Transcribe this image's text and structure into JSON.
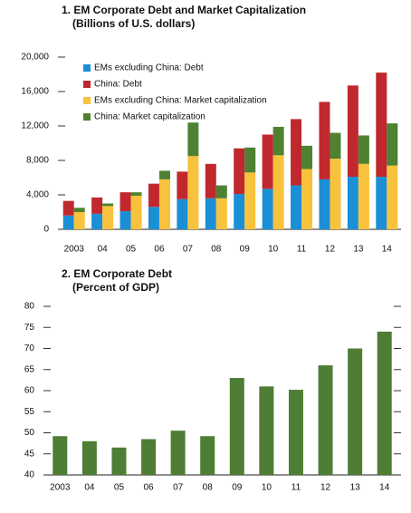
{
  "chart_data": [
    {
      "type": "bar",
      "title": "1. EM Corporate Debt and Market Capitalization",
      "subtitle": "(Billions of U.S. dollars)",
      "categories": [
        "2003",
        "04",
        "05",
        "06",
        "07",
        "08",
        "09",
        "10",
        "11",
        "12",
        "13",
        "14"
      ],
      "series": [
        {
          "name": "EMs excluding China: Debt",
          "color": "#1a8fd6",
          "values": [
            1600,
            1800,
            2100,
            2600,
            3500,
            3600,
            4100,
            4700,
            5100,
            5800,
            6100,
            6100
          ]
        },
        {
          "name": "China: Debt",
          "color": "#c0282d",
          "values": [
            1700,
            1900,
            2200,
            2700,
            3200,
            4000,
            5300,
            6300,
            7700,
            9000,
            10600,
            12100
          ]
        },
        {
          "name": "EMs excluding China: Market capitalization",
          "color": "#f9c23c",
          "values": [
            2000,
            2700,
            3900,
            5800,
            8500,
            3600,
            6600,
            8600,
            7000,
            8200,
            7600,
            7400
          ]
        },
        {
          "name": "China: Market capitalization",
          "color": "#4e8132",
          "values": [
            500,
            300,
            400,
            1000,
            3900,
            1500,
            2900,
            3300,
            2700,
            3000,
            3300,
            4900
          ]
        }
      ],
      "ylim": [
        0,
        20000
      ],
      "yticks": [
        0,
        {
          "value": 4000,
          "label": "4,000"
        },
        {
          "value": 8000,
          "label": "8,000"
        },
        {
          "value": 12000,
          "label": "12,000"
        },
        {
          "value": 16000,
          "label": "16,000"
        },
        {
          "value": 20000,
          "label": "20,000"
        }
      ],
      "legend": "upper-left"
    },
    {
      "type": "bar",
      "title": "2. EM Corporate Debt",
      "subtitle": "(Percent of GDP)",
      "categories": [
        "2003",
        "04",
        "05",
        "06",
        "07",
        "08",
        "09",
        "10",
        "11",
        "12",
        "13",
        "14"
      ],
      "values": [
        49.2,
        48,
        46.5,
        48.5,
        50.5,
        49.2,
        63,
        61,
        60.2,
        66,
        70,
        74
      ],
      "color": "#4e7d34",
      "ylim": [
        40,
        80
      ],
      "yticks": [
        40,
        45,
        50,
        55,
        60,
        65,
        70,
        75,
        80
      ]
    }
  ]
}
